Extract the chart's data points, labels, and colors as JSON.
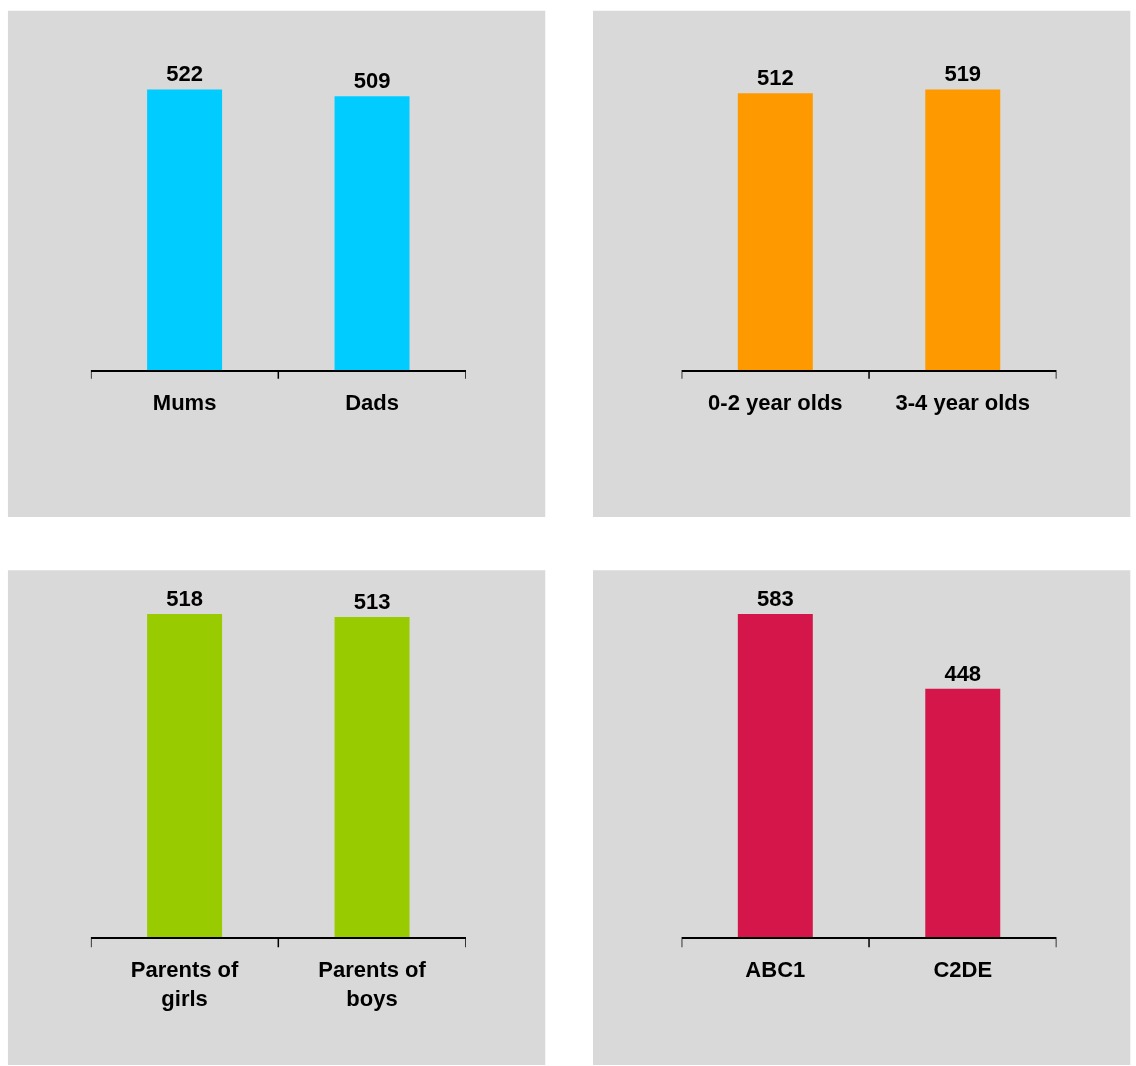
{
  "chart_data": [
    {
      "type": "bar",
      "categories": [
        "Mums",
        "Dads"
      ],
      "values": [
        522,
        509
      ],
      "color": "#00ccff",
      "data_labels": true,
      "tick_labels": "x",
      "grid": false,
      "legend": false
    },
    {
      "type": "bar",
      "categories": [
        "0-2 year olds",
        "3-4 year olds"
      ],
      "values": [
        512,
        519
      ],
      "color": "#ff9900",
      "data_labels": true,
      "tick_labels": "x",
      "grid": false,
      "legend": false
    },
    {
      "type": "bar",
      "categories": [
        "Parents of girls",
        "Parents of boys"
      ],
      "values": [
        518,
        513
      ],
      "color": "#99cc00",
      "data_labels": true,
      "tick_labels": "x",
      "grid": false,
      "legend": false
    },
    {
      "type": "bar",
      "categories": [
        "ABC1",
        "C2DE"
      ],
      "values": [
        583,
        448
      ],
      "color": "#d4164a",
      "data_labels": true,
      "tick_labels": "x",
      "grid": false,
      "legend": false
    }
  ]
}
